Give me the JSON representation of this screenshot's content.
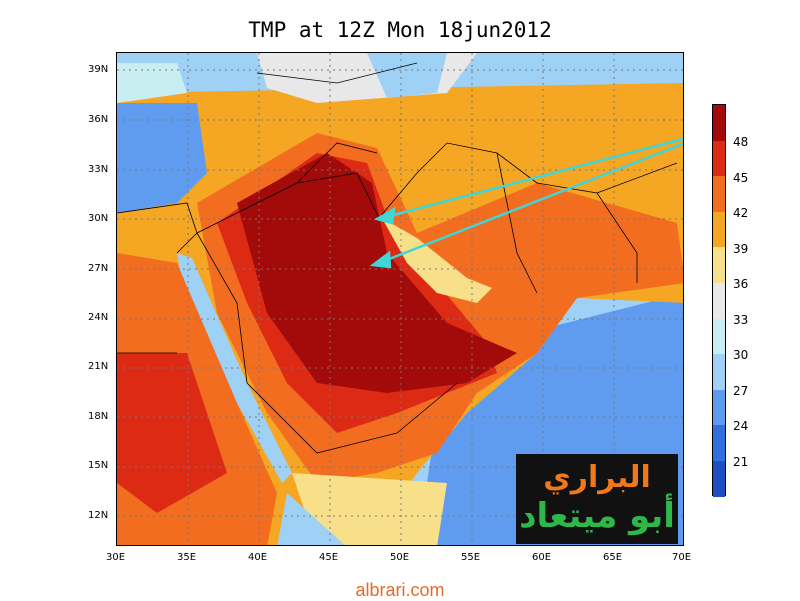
{
  "title": "TMP at 12Z Mon 18jun2012",
  "map": {
    "y_ticks": [
      "39N",
      "36N",
      "33N",
      "30N",
      "27N",
      "24N",
      "21N",
      "18N",
      "15N",
      "12N"
    ],
    "x_ticks": [
      "30E",
      "35E",
      "40E",
      "45E",
      "50E",
      "55E",
      "60E",
      "65E",
      "70E"
    ],
    "colors": {
      "c21": "#1d4fc4",
      "c24": "#2f6fe0",
      "c27": "#5f9cf0",
      "c30": "#9fd0f5",
      "c33": "#c8eef2",
      "c36": "#e8e8e8",
      "c39": "#f8e08a",
      "c42": "#f5a623",
      "c45": "#f26d1f",
      "c48": "#dd2a14",
      "c50": "#a30a0a",
      "arrow": "#3fd6d8"
    }
  },
  "colorbar": {
    "labels": [
      "48",
      "45",
      "42",
      "39",
      "36",
      "33",
      "30",
      "27",
      "24",
      "21"
    ],
    "colors": [
      "#a30a0a",
      "#dd2a14",
      "#f26d1f",
      "#f5a623",
      "#f8e08a",
      "#e8e8e8",
      "#c8eef2",
      "#9fd0f5",
      "#5f9cf0",
      "#2f6fe0",
      "#1d4fc4"
    ]
  },
  "logo": {
    "line1": "البراري",
    "line2": "أبو ميتعاد"
  },
  "footer": "albrari.com"
}
